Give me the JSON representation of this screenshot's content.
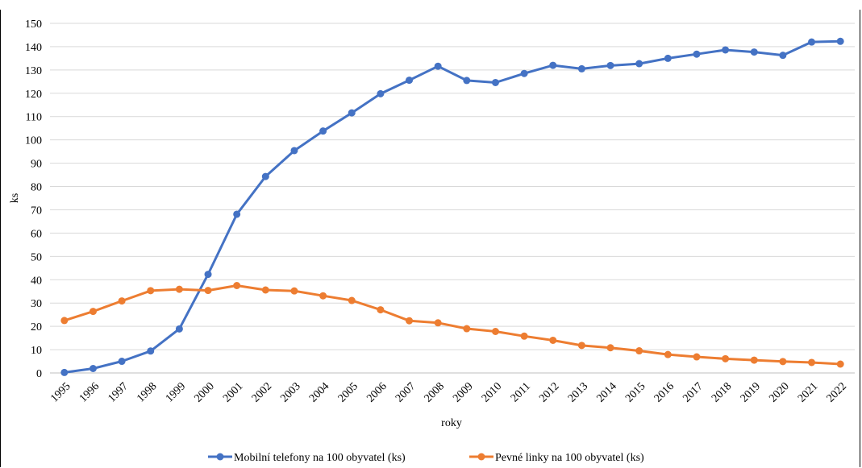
{
  "cut_title": "",
  "colors": {
    "mobile": "#4472c4",
    "fixed": "#ed7d31",
    "grid": "#d9d9d9",
    "axis": "#bfbfbf"
  },
  "chart_data": {
    "type": "line",
    "title": "",
    "xlabel": "roky",
    "ylabel": "ks",
    "ylim": [
      0,
      150
    ],
    "y_ticks": [
      0,
      10,
      20,
      30,
      40,
      50,
      60,
      70,
      80,
      90,
      100,
      110,
      120,
      130,
      140,
      150
    ],
    "grid": true,
    "legend_position": "bottom",
    "categories": [
      "1995",
      "1996",
      "1997",
      "1998",
      "1999",
      "2000",
      "2001",
      "2002",
      "2003",
      "2004",
      "2005",
      "2006",
      "2007",
      "2008",
      "2009",
      "2010",
      "2011",
      "2012",
      "2013",
      "2014",
      "2015",
      "2016",
      "2017",
      "2018",
      "2019",
      "2020",
      "2021",
      "2022"
    ],
    "series": [
      {
        "name": "Mobilní telefony na 100 obyvatel (ks)",
        "color": "#4472c4",
        "values": [
          0.2,
          1.9,
          5,
          9.4,
          18.9,
          42.3,
          68.1,
          84.3,
          95.4,
          103.8,
          111.6,
          119.8,
          125.6,
          131.6,
          125.5,
          124.6,
          128.5,
          132,
          130.5,
          131.9,
          132.7,
          135,
          136.8,
          138.6,
          137.7,
          136.3,
          142,
          142.3
        ]
      },
      {
        "name": "Pevné linky na 100 obyvatel (ks)",
        "color": "#ed7d31",
        "values": [
          22.5,
          26.4,
          30.9,
          35.3,
          35.9,
          35.4,
          37.5,
          35.6,
          35.2,
          33.1,
          31.1,
          27.1,
          22.4,
          21.5,
          19,
          17.8,
          15.8,
          14,
          11.8,
          10.8,
          9.5,
          7.9,
          6.9,
          6.1,
          5.5,
          4.9,
          4.5,
          3.8
        ]
      }
    ]
  }
}
